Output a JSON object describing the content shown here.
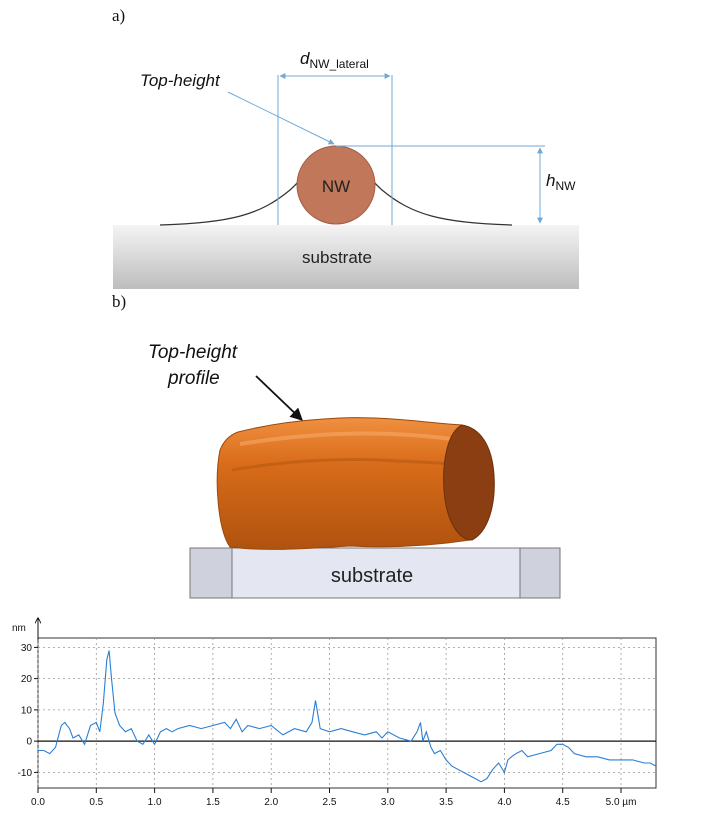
{
  "panel_a": {
    "label": "a)",
    "top_height_label": "Top-height",
    "lateral_label_main": "d",
    "lateral_label_sub": "NW_lateral",
    "height_label_main": "h",
    "height_label_sub": "NW",
    "nanowire_label": "NW",
    "substrate_label": "substrate",
    "colors": {
      "nanowire": "#c0775a",
      "arrow": "#6fa8d8",
      "substrate_top": "#f4f4f4",
      "substrate_bottom": "#bdbdbd"
    }
  },
  "panel_b": {
    "label": "b)",
    "profile_label_line1": "Top-height",
    "profile_label_line2": "profile",
    "substrate_label": "substrate",
    "colors": {
      "nanowire": "#d86c1a",
      "nanowire_end": "#8a3e12",
      "substrate": "#e4e6f2",
      "substrate_side": "#cfd2dd"
    }
  },
  "chart_data": {
    "type": "line",
    "ylabel": "nm",
    "xunit": "µm",
    "ylim": [
      -15,
      33
    ],
    "xlim": [
      0,
      5.3
    ],
    "xticks": [
      0.0,
      0.5,
      1.0,
      1.5,
      2.0,
      2.5,
      3.0,
      3.5,
      4.0,
      4.5,
      5.0
    ],
    "xtick_labels": [
      "0.0",
      "0.5",
      "1.0",
      "1.5",
      "2.0",
      "2.5",
      "3.0",
      "3.5",
      "4.0",
      "4.5",
      "5.0 µm"
    ],
    "yticks": [
      -10,
      0,
      10,
      20,
      30
    ],
    "ytick_labels": [
      "-10",
      "0",
      "10",
      "20",
      "30"
    ],
    "grid": true,
    "color": "#2a7fd4",
    "series": [
      {
        "x": [
          0.0,
          0.05,
          0.1,
          0.15,
          0.2,
          0.23,
          0.27,
          0.3,
          0.35,
          0.4,
          0.45,
          0.5,
          0.53,
          0.56,
          0.59,
          0.61,
          0.63,
          0.66,
          0.7,
          0.75,
          0.8,
          0.85,
          0.9,
          0.95,
          1.0,
          1.05,
          1.1,
          1.15,
          1.2,
          1.3,
          1.4,
          1.5,
          1.6,
          1.65,
          1.7,
          1.75,
          1.8,
          1.9,
          2.0,
          2.1,
          2.2,
          2.3,
          2.35,
          2.38,
          2.42,
          2.5,
          2.6,
          2.7,
          2.8,
          2.9,
          2.95,
          3.0,
          3.1,
          3.2,
          3.25,
          3.28,
          3.3,
          3.33,
          3.37,
          3.4,
          3.45,
          3.5,
          3.55,
          3.6,
          3.65,
          3.7,
          3.75,
          3.8,
          3.85,
          3.9,
          3.95,
          4.0,
          4.03,
          4.06,
          4.1,
          4.15,
          4.2,
          4.3,
          4.4,
          4.45,
          4.5,
          4.55,
          4.6,
          4.7,
          4.8,
          4.9,
          5.0,
          5.1,
          5.2,
          5.25,
          5.3
        ],
        "y": [
          -3,
          -3,
          -4,
          -2,
          5,
          6,
          4,
          1,
          2,
          -1,
          5,
          6,
          3,
          12,
          26,
          29,
          20,
          9,
          5,
          3,
          4,
          0,
          -1,
          2,
          -1,
          3,
          4,
          3,
          4,
          5,
          4,
          5,
          6,
          4,
          7,
          3,
          5,
          4,
          5,
          2,
          4,
          3,
          6,
          13,
          4,
          3,
          4,
          3,
          2,
          3,
          1,
          3,
          1,
          0,
          3,
          6,
          0,
          3,
          -2,
          -4,
          -3,
          -6,
          -8,
          -9,
          -10,
          -11,
          -12,
          -13,
          -12,
          -9,
          -7,
          -10,
          -6,
          -5,
          -4,
          -3,
          -5,
          -4,
          -3,
          -1,
          -1,
          -2,
          -4,
          -5,
          -5,
          -6,
          -6,
          -6,
          -7,
          -7,
          -8
        ]
      }
    ]
  }
}
